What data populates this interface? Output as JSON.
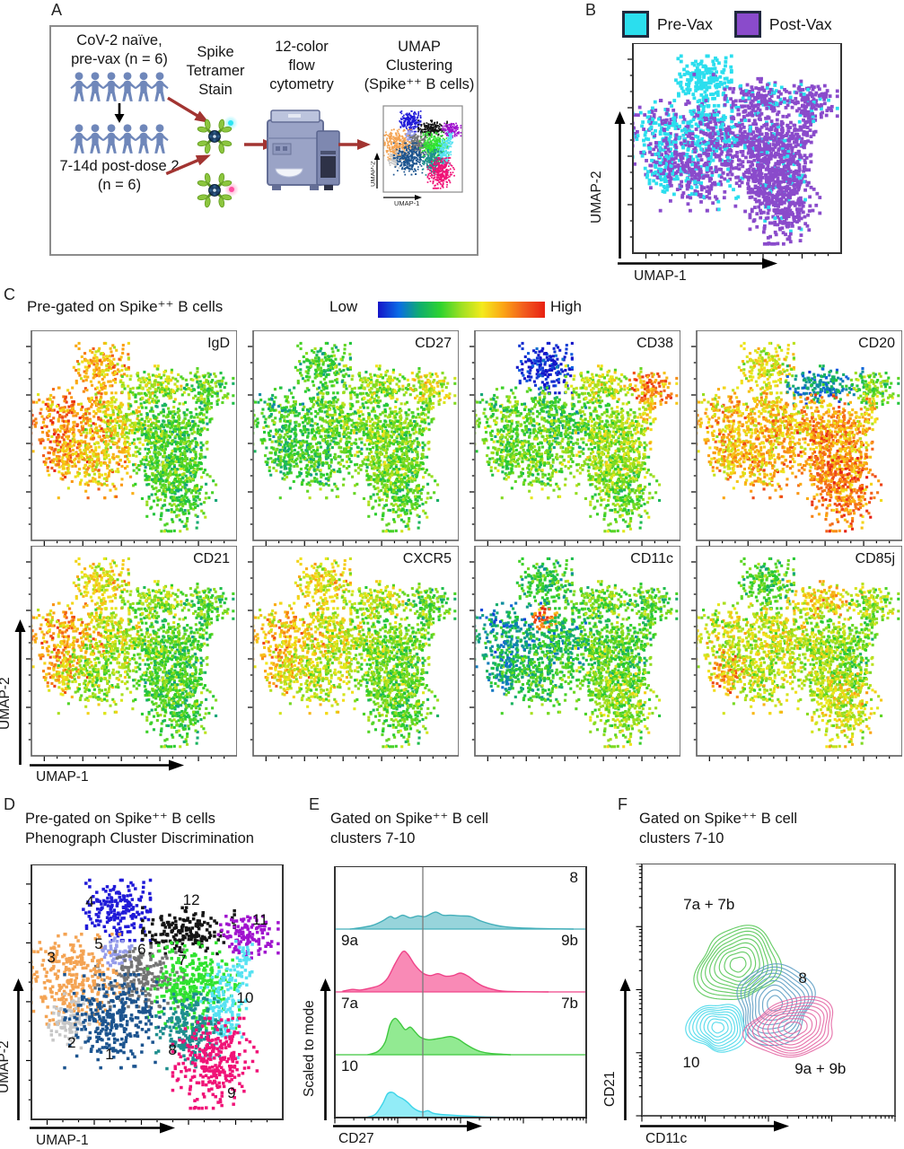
{
  "panels": {
    "A": {
      "label": "A",
      "cohort1": [
        "CoV-2 naïve,",
        "pre-vax (n = 6)"
      ],
      "cohort2": [
        "7-14d post-dose 2",
        "(n = 6)"
      ],
      "figures_per_row": 6,
      "people_color": "#6F87BA",
      "step_tetramer": [
        "Spike",
        "Tetramer",
        "Stain"
      ],
      "step_flow": [
        "12-color",
        "flow",
        "cytometry"
      ],
      "step_umap": [
        "UMAP",
        "Clustering",
        "(Spike⁺⁺ B cells)"
      ],
      "mini_plot": {
        "xlabel": "UMAP-1",
        "ylabel": "UMAP-2"
      }
    },
    "B": {
      "label": "B",
      "legend": [
        {
          "label": "Pre-Vax",
          "color": "#2BDEEE"
        },
        {
          "label": "Post-Vax",
          "color": "#8A4BCB"
        }
      ],
      "xlabel": "UMAP-1",
      "ylabel": "UMAP-2"
    },
    "C": {
      "label": "C",
      "title": "Pre-gated on Spike⁺⁺ B cells",
      "scale": {
        "low": "Low",
        "high": "High"
      },
      "markers": [
        "IgD",
        "CD27",
        "CD38",
        "CD20",
        "CD21",
        "CXCR5",
        "CD11c",
        "CD85j"
      ],
      "xlabel": "UMAP-1",
      "ylabel": "UMAP-2"
    },
    "D": {
      "label": "D",
      "title": [
        "Pre-gated on Spike⁺⁺ B cells",
        "Phenograph Cluster Discrimination"
      ],
      "xlabel": "UMAP-1",
      "ylabel": "UMAP-2"
    },
    "E": {
      "label": "E",
      "title": [
        "Gated on Spike⁺⁺ B cell",
        "clusters 7-10"
      ],
      "xlabel": "CD27",
      "ylabel": "Scaled to mode"
    },
    "F": {
      "label": "F",
      "title": [
        "Gated on Spike⁺⁺ B cell",
        "clusters 7-10"
      ],
      "xlabel": "CD11c",
      "ylabel": "CD21"
    }
  },
  "chart_data": {
    "type": "multi-panel",
    "umap": {
      "type": "scatter",
      "group_colors": {
        "pre": "#2BDEEE",
        "post": "#8A4BCB"
      },
      "colormap_stops": [
        [
          0,
          "#1414C8"
        ],
        [
          0.15,
          "#0E62E0"
        ],
        [
          0.3,
          "#12A878"
        ],
        [
          0.42,
          "#2BCE2B"
        ],
        [
          0.55,
          "#90DC20"
        ],
        [
          0.67,
          "#F0E81C"
        ],
        [
          0.8,
          "#FBA113"
        ],
        [
          0.9,
          "#F0561B"
        ],
        [
          1,
          "#E62112"
        ]
      ],
      "marker_order": [
        "IgD",
        "CD27",
        "CD38",
        "CD20",
        "CD21",
        "CXCR5",
        "CD11c",
        "CD85j"
      ],
      "clusters": [
        {
          "id": "4",
          "label": "4",
          "color": "#201AD8",
          "cx": 0.34,
          "cy": 0.18,
          "rx": 0.062,
          "ry": 0.055,
          "n": 190,
          "pre_frac": 0.97,
          "label_x": 0.232,
          "label_y": 0.148,
          "expr": [
            0.76,
            0.45,
            0.04,
            0.66,
            0.68,
            0.68,
            0.42,
            0.46
          ]
        },
        {
          "id": "12",
          "label": "12",
          "color": "#141414",
          "cx": 0.625,
          "cy": 0.26,
          "rx": 0.085,
          "ry": 0.042,
          "n": 175,
          "pre_frac": 0.25,
          "label_x": 0.636,
          "label_y": 0.141,
          "expr": [
            0.58,
            0.55,
            0.6,
            0.26,
            0.55,
            0.6,
            0.5,
            0.7
          ]
        },
        {
          "id": "11",
          "label": "11",
          "color": "#A013CE",
          "cx": 0.857,
          "cy": 0.285,
          "rx": 0.058,
          "ry": 0.038,
          "n": 115,
          "pre_frac": 0.15,
          "label_x": 0.91,
          "label_y": 0.218,
          "expr": [
            0.46,
            0.62,
            0.82,
            0.48,
            0.45,
            0.45,
            0.45,
            0.55
          ]
        },
        {
          "id": "5",
          "label": "5",
          "color": "#959CEA",
          "cx": 0.345,
          "cy": 0.345,
          "rx": 0.03,
          "ry": 0.028,
          "n": 50,
          "pre_frac": 0.4,
          "label_x": 0.268,
          "label_y": 0.313,
          "expr": [
            0.74,
            0.46,
            0.44,
            0.7,
            0.62,
            0.62,
            0.86,
            0.6
          ]
        },
        {
          "id": "6",
          "label": "6",
          "color": "#757575",
          "cx": 0.43,
          "cy": 0.44,
          "rx": 0.082,
          "ry": 0.055,
          "n": 215,
          "pre_frac": 0.35,
          "label_x": 0.439,
          "label_y": 0.334,
          "expr": [
            0.62,
            0.5,
            0.42,
            0.72,
            0.6,
            0.62,
            0.34,
            0.62
          ]
        },
        {
          "id": "3",
          "label": "3",
          "color": "#F4A352",
          "cx": 0.175,
          "cy": 0.45,
          "rx": 0.082,
          "ry": 0.082,
          "n": 290,
          "pre_frac": 0.55,
          "label_x": 0.079,
          "label_y": 0.366,
          "expr": [
            0.83,
            0.42,
            0.48,
            0.74,
            0.78,
            0.74,
            0.28,
            0.62
          ]
        },
        {
          "id": "7",
          "label": "7",
          "color": "#2FE32F",
          "cx": 0.645,
          "cy": 0.475,
          "rx": 0.085,
          "ry": 0.078,
          "n": 300,
          "pre_frac": 0.06,
          "label_x": 0.6,
          "label_y": 0.377,
          "expr": [
            0.46,
            0.52,
            0.54,
            0.8,
            0.48,
            0.52,
            0.48,
            0.56
          ]
        },
        {
          "id": "10",
          "label": "10",
          "color": "#57E2F2",
          "cx": 0.765,
          "cy": 0.575,
          "rx": 0.042,
          "ry": 0.085,
          "n": 140,
          "pre_frac": 0.12,
          "label_x": 0.85,
          "label_y": 0.525,
          "expr": [
            0.46,
            0.5,
            0.6,
            0.78,
            0.45,
            0.5,
            0.45,
            0.5
          ]
        },
        {
          "id": "10b",
          "label": "",
          "color": "#57E2F2",
          "cx": 0.835,
          "cy": 0.41,
          "rx": 0.022,
          "ry": 0.06,
          "n": 45,
          "pre_frac": 0.15,
          "label_x": 0,
          "label_y": 0,
          "expr": [
            0.46,
            0.5,
            0.68,
            0.7,
            0.45,
            0.5,
            0.45,
            0.5
          ]
        },
        {
          "id": "2",
          "label": "2",
          "color": "#C7C7C7",
          "cx": 0.15,
          "cy": 0.615,
          "rx": 0.038,
          "ry": 0.05,
          "n": 85,
          "pre_frac": 0.5,
          "label_x": 0.16,
          "label_y": 0.7,
          "expr": [
            0.8,
            0.42,
            0.48,
            0.72,
            0.75,
            0.7,
            0.3,
            0.8
          ]
        },
        {
          "id": "1",
          "label": "1",
          "color": "#1C548F",
          "cx": 0.33,
          "cy": 0.615,
          "rx": 0.092,
          "ry": 0.085,
          "n": 300,
          "pre_frac": 0.3,
          "label_x": 0.31,
          "label_y": 0.747,
          "expr": [
            0.72,
            0.44,
            0.5,
            0.76,
            0.55,
            0.6,
            0.42,
            0.6
          ]
        },
        {
          "id": "8",
          "label": "8",
          "color": "#1F8E8E",
          "cx": 0.625,
          "cy": 0.655,
          "rx": 0.06,
          "ry": 0.068,
          "n": 215,
          "pre_frac": 0.07,
          "label_x": 0.561,
          "label_y": 0.729,
          "expr": [
            0.46,
            0.52,
            0.56,
            0.82,
            0.45,
            0.5,
            0.5,
            0.58
          ]
        },
        {
          "id": "9",
          "label": "9",
          "color": "#F01377",
          "cx": 0.73,
          "cy": 0.78,
          "rx": 0.078,
          "ry": 0.082,
          "n": 290,
          "pre_frac": 0.04,
          "label_x": 0.796,
          "label_y": 0.898,
          "expr": [
            0.45,
            0.48,
            0.5,
            0.85,
            0.45,
            0.48,
            0.55,
            0.64
          ]
        }
      ]
    },
    "histograms": {
      "type": "area",
      "xlabel": "CD27",
      "ylabel": "Scaled to mode",
      "divider_x": 0.35,
      "rows": [
        {
          "id": "8",
          "label_left": "",
          "label_right": "8",
          "fill": "#85CDD5",
          "stroke": "#44AFBA",
          "curve": [
            [
              0.06,
              0
            ],
            [
              0.1,
              0.02
            ],
            [
              0.15,
              0.06
            ],
            [
              0.19,
              0.13
            ],
            [
              0.22,
              0.2
            ],
            [
              0.24,
              0.17
            ],
            [
              0.27,
              0.22
            ],
            [
              0.3,
              0.18
            ],
            [
              0.33,
              0.21
            ],
            [
              0.36,
              0.2
            ],
            [
              0.4,
              0.27
            ],
            [
              0.43,
              0.22
            ],
            [
              0.46,
              0.22
            ],
            [
              0.5,
              0.21
            ],
            [
              0.54,
              0.2
            ],
            [
              0.58,
              0.13
            ],
            [
              0.62,
              0.08
            ],
            [
              0.67,
              0.04
            ],
            [
              0.73,
              0.02
            ],
            [
              0.8,
              0.01
            ],
            [
              0.95,
              0
            ]
          ]
        },
        {
          "id": "9",
          "label_left": "9a",
          "label_right": "9b",
          "fill": "#F876A9",
          "stroke": "#EF4489",
          "curve": [
            [
              0.03,
              0.01
            ],
            [
              0.07,
              0.04
            ],
            [
              0.1,
              0.03
            ],
            [
              0.14,
              0.06
            ],
            [
              0.18,
              0.11
            ],
            [
              0.21,
              0.22
            ],
            [
              0.24,
              0.45
            ],
            [
              0.27,
              0.64
            ],
            [
              0.29,
              0.6
            ],
            [
              0.32,
              0.42
            ],
            [
              0.35,
              0.3
            ],
            [
              0.38,
              0.26
            ],
            [
              0.41,
              0.29
            ],
            [
              0.44,
              0.25
            ],
            [
              0.47,
              0.26
            ],
            [
              0.5,
              0.3
            ],
            [
              0.53,
              0.25
            ],
            [
              0.56,
              0.16
            ],
            [
              0.59,
              0.09
            ],
            [
              0.63,
              0.04
            ],
            [
              0.68,
              0.01
            ],
            [
              0.85,
              0
            ]
          ]
        },
        {
          "id": "7",
          "label_left": "7a",
          "label_right": "7b",
          "fill": "#7FE67F",
          "stroke": "#3FC83F",
          "curve": [
            [
              0.13,
              0
            ],
            [
              0.17,
              0.05
            ],
            [
              0.2,
              0.2
            ],
            [
              0.22,
              0.48
            ],
            [
              0.24,
              0.58
            ],
            [
              0.26,
              0.5
            ],
            [
              0.28,
              0.4
            ],
            [
              0.3,
              0.44
            ],
            [
              0.32,
              0.36
            ],
            [
              0.34,
              0.28
            ],
            [
              0.37,
              0.24
            ],
            [
              0.4,
              0.25
            ],
            [
              0.43,
              0.27
            ],
            [
              0.46,
              0.29
            ],
            [
              0.49,
              0.25
            ],
            [
              0.52,
              0.17
            ],
            [
              0.55,
              0.1
            ],
            [
              0.58,
              0.05
            ],
            [
              0.62,
              0.02
            ],
            [
              0.7,
              0
            ]
          ]
        },
        {
          "id": "10",
          "label_left": "10",
          "label_right": "",
          "fill": "#7FE9F6",
          "stroke": "#3DD4E8",
          "curve": [
            [
              0.12,
              0
            ],
            [
              0.16,
              0.05
            ],
            [
              0.19,
              0.22
            ],
            [
              0.21,
              0.38
            ],
            [
              0.23,
              0.4
            ],
            [
              0.25,
              0.34
            ],
            [
              0.27,
              0.3
            ],
            [
              0.29,
              0.24
            ],
            [
              0.31,
              0.16
            ],
            [
              0.33,
              0.11
            ],
            [
              0.35,
              0.09
            ],
            [
              0.37,
              0.11
            ],
            [
              0.39,
              0.07
            ],
            [
              0.42,
              0.05
            ],
            [
              0.46,
              0.04
            ],
            [
              0.5,
              0.03
            ],
            [
              0.55,
              0.02
            ],
            [
              0.6,
              0.01
            ],
            [
              0.75,
              0
            ]
          ]
        }
      ]
    },
    "contours": {
      "type": "contour",
      "xlabel": "CD11c",
      "ylabel": "CD21",
      "groups": [
        {
          "id": "7a+7b",
          "color": "#58C858",
          "cx": 0.38,
          "cy": 0.4,
          "rx": 0.155,
          "ry": 0.15,
          "rings": 9,
          "seed": 7
        },
        {
          "id": "8",
          "color": "#5E9EC4",
          "cx": 0.525,
          "cy": 0.555,
          "rx": 0.16,
          "ry": 0.145,
          "rings": 9,
          "seed": 8
        },
        {
          "id": "10",
          "color": "#49D8EA",
          "cx": 0.3,
          "cy": 0.65,
          "rx": 0.105,
          "ry": 0.103,
          "rings": 8,
          "seed": 10
        },
        {
          "id": "9a+9b",
          "color": "#E468A4",
          "cx": 0.595,
          "cy": 0.65,
          "rx": 0.175,
          "ry": 0.112,
          "rings": 9,
          "seed": 9
        }
      ],
      "labels": [
        {
          "text": "7a + 7b",
          "x": 0.265,
          "y": 0.165
        },
        {
          "text": "8",
          "x": 0.635,
          "y": 0.455
        },
        {
          "text": "10",
          "x": 0.195,
          "y": 0.79
        },
        {
          "text": "9a + 9b",
          "x": 0.705,
          "y": 0.815
        }
      ]
    }
  }
}
